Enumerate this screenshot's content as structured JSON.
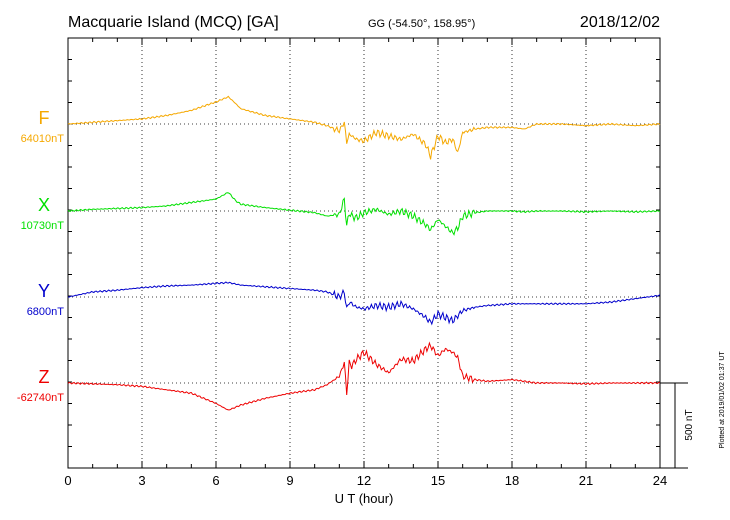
{
  "header": {
    "station": "Macquarie Island (MCQ)  [GA]",
    "coords": "GG (-54.50°, 158.95°)",
    "date": "2018/12/02"
  },
  "footer_note": "Plotted at 2019/01/02 01:37 UT",
  "scale_bar": {
    "label": "500 nT",
    "value_nT": 500
  },
  "colors": {
    "F": "#f5a800",
    "X": "#00e000",
    "Y": "#0000cc",
    "Z": "#ee0000",
    "frame": "#000000"
  },
  "chart_data": {
    "type": "line",
    "title": "Macquarie Island (MCQ)  [GA]",
    "xlabel": "U T (hour)",
    "xlim": [
      0,
      24
    ],
    "xticks": [
      "0",
      "3",
      "6",
      "9",
      "12",
      "15",
      "18",
      "21",
      "24"
    ],
    "grid": true,
    "series": [
      {
        "name": "F",
        "baseline_label": "64010nT",
        "baseline_nT": 64010,
        "x": [
          0,
          1,
          2,
          3,
          4,
          5,
          6,
          6.5,
          6.8,
          7,
          8,
          9,
          10,
          10.5,
          11,
          11.2,
          11.3,
          11.4,
          11.5,
          11.7,
          12,
          12.5,
          13,
          13.5,
          14,
          14.5,
          14.7,
          15,
          15.3,
          15.6,
          15.8,
          16,
          16.5,
          17,
          18,
          18.5,
          19,
          20,
          21,
          22,
          23,
          24
        ],
        "values": [
          64010,
          64020,
          64030,
          64040,
          64060,
          64090,
          64140,
          64170,
          64130,
          64100,
          64060,
          64040,
          64020,
          64000,
          63970,
          64020,
          63900,
          63950,
          63940,
          63920,
          63910,
          63960,
          63940,
          63920,
          63950,
          63890,
          63820,
          63940,
          63900,
          63920,
          63840,
          63960,
          63980,
          63990,
          63990,
          63980,
          64010,
          64010,
          64000,
          64010,
          64000,
          64010
        ]
      },
      {
        "name": "X",
        "baseline_label": "10730nT",
        "baseline_nT": 10730,
        "x": [
          0,
          1,
          2,
          3,
          4,
          5,
          6,
          6.5,
          6.8,
          7,
          8,
          9,
          10,
          10.5,
          11,
          11.2,
          11.3,
          11.4,
          11.5,
          11.7,
          12,
          12.5,
          13,
          13.5,
          14,
          14.5,
          14.7,
          15,
          15.3,
          15.6,
          15.8,
          16,
          16.5,
          17,
          18,
          18.5,
          19,
          20,
          21,
          22,
          23,
          24
        ],
        "values": [
          10730,
          10740,
          10745,
          10750,
          10760,
          10780,
          10800,
          10840,
          10790,
          10770,
          10750,
          10735,
          10720,
          10700,
          10710,
          10800,
          10640,
          10720,
          10700,
          10690,
          10720,
          10740,
          10710,
          10730,
          10700,
          10650,
          10620,
          10680,
          10640,
          10600,
          10630,
          10700,
          10720,
          10730,
          10730,
          10725,
          10730,
          10730,
          10725,
          10730,
          10725,
          10730
        ]
      },
      {
        "name": "Y",
        "baseline_label": "6800nT",
        "baseline_nT": 6800,
        "x": [
          0,
          1,
          2,
          3,
          4,
          5,
          6,
          6.5,
          7,
          8,
          9,
          10,
          10.5,
          11,
          11.2,
          11.3,
          11.4,
          11.5,
          11.7,
          12,
          12.5,
          13,
          13.5,
          14,
          14.5,
          14.7,
          15,
          15.3,
          15.6,
          15.8,
          16,
          16.5,
          17,
          18,
          19,
          20,
          21,
          22,
          23,
          24
        ],
        "values": [
          6800,
          6830,
          6840,
          6855,
          6865,
          6870,
          6880,
          6885,
          6870,
          6860,
          6850,
          6840,
          6830,
          6800,
          6830,
          6730,
          6770,
          6760,
          6740,
          6730,
          6750,
          6740,
          6760,
          6730,
          6680,
          6650,
          6700,
          6680,
          6660,
          6690,
          6720,
          6740,
          6750,
          6760,
          6760,
          6760,
          6760,
          6770,
          6790,
          6810
        ]
      },
      {
        "name": "Z",
        "baseline_label": "-62740nT",
        "baseline_nT": -62740,
        "x": [
          0,
          1,
          2,
          3,
          4,
          5,
          5.5,
          6,
          6.5,
          7,
          8,
          9,
          10,
          10.5,
          11,
          11.2,
          11.3,
          11.4,
          11.5,
          11.7,
          12,
          12.5,
          13,
          13.5,
          14,
          14.5,
          14.7,
          15,
          15.3,
          15.6,
          15.8,
          16,
          16.5,
          17,
          18,
          19,
          20,
          21,
          22,
          23,
          24
        ],
        "values": [
          -62740,
          -62745,
          -62750,
          -62760,
          -62780,
          -62800,
          -62830,
          -62860,
          -62900,
          -62870,
          -62830,
          -62800,
          -62780,
          -62750,
          -62700,
          -62620,
          -62800,
          -62620,
          -62640,
          -62600,
          -62560,
          -62630,
          -62680,
          -62600,
          -62610,
          -62540,
          -62520,
          -62580,
          -62540,
          -62560,
          -62590,
          -62700,
          -62720,
          -62730,
          -62720,
          -62740,
          -62740,
          -62745,
          -62740,
          -62740,
          -62740
        ]
      }
    ]
  }
}
